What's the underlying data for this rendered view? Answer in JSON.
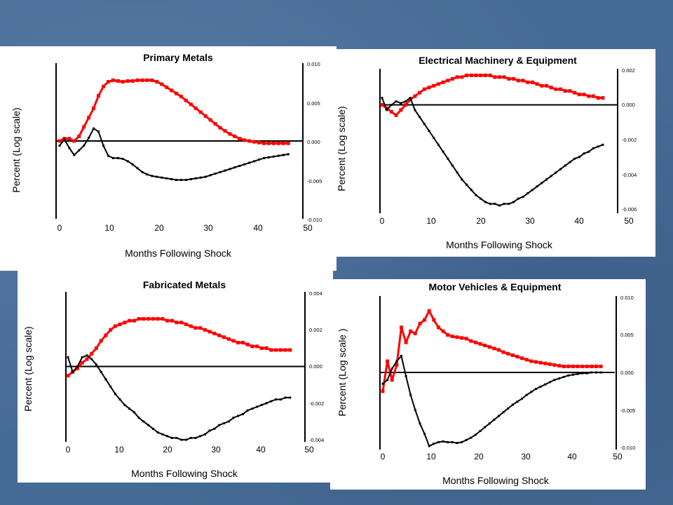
{
  "charts": [
    {
      "title": "Primary Metals",
      "xlabel": "Months Following Shock",
      "ylabel": "Percent (Log scale)",
      "xticks": [
        "0",
        "10",
        "20",
        "30",
        "40",
        "50"
      ],
      "yticks_right": [
        "0.010",
        "0.005",
        "0.000",
        "-0.005",
        "-0.010"
      ]
    },
    {
      "title": "Electrical Machinery & Equipment",
      "xlabel": "Months Following Shock",
      "ylabel": "Percent (Log scale)",
      "xticks": [
        "0",
        "10",
        "20",
        "30",
        "40",
        "50"
      ],
      "yticks_right": [
        "0.002",
        "0.000",
        "-0.002",
        "-0.004",
        "-0.006"
      ]
    },
    {
      "title": "Fabricated Metals",
      "xlabel": "Months Following Shock",
      "ylabel": "Percent (Log scale)",
      "xticks": [
        "0",
        "10",
        "20",
        "30",
        "40",
        "50"
      ],
      "yticks_right": [
        "0.004",
        "0.002",
        "0.000",
        "-0.002",
        "-0.004"
      ]
    },
    {
      "title": "Motor Vehicles & Equipment",
      "xlabel": "Months Following Shock",
      "ylabel": "Percent (Log scale )",
      "xticks": [
        "0",
        "10",
        "20",
        "30",
        "40",
        "50"
      ],
      "yticks_right": [
        "0.010",
        "0.005",
        "0.000",
        "-0.005",
        "-0.010"
      ]
    }
  ],
  "chart_data": [
    {
      "type": "line",
      "title": "Primary Metals",
      "xlabel": "Months Following Shock",
      "ylabel": "Percent (Log scale)",
      "xlim": [
        0,
        50
      ],
      "ylim": [
        -0.01,
        0.01
      ],
      "grid": false,
      "colors": {
        "red": "#ff0000",
        "black": "#000000",
        "zero": "#000000"
      },
      "series": [
        {
          "color": "red",
          "x": [
            0,
            1,
            2,
            3,
            4,
            5,
            6,
            7,
            8,
            9,
            10,
            11,
            12,
            13,
            14,
            15,
            16,
            17,
            18,
            19,
            20,
            21,
            22,
            23,
            24,
            25,
            26,
            27,
            28,
            29,
            30,
            31,
            32,
            33,
            34,
            35,
            36,
            37,
            38,
            39,
            40,
            41,
            42,
            43,
            44,
            45,
            46,
            47
          ],
          "values": [
            0.0,
            0.0003,
            0.0003,
            0.0,
            0.0006,
            0.0018,
            0.003,
            0.0042,
            0.0058,
            0.007,
            0.0076,
            0.0078,
            0.0077,
            0.0076,
            0.0077,
            0.0077,
            0.0078,
            0.0078,
            0.0078,
            0.0078,
            0.0076,
            0.0073,
            0.0069,
            0.0065,
            0.0061,
            0.0057,
            0.0052,
            0.0047,
            0.0042,
            0.0037,
            0.0032,
            0.0027,
            0.0022,
            0.0017,
            0.0013,
            0.0009,
            0.0006,
            0.0003,
            0.0001,
            0.0,
            -0.0001,
            -0.0002,
            -0.0003,
            -0.0003,
            -0.0003,
            -0.0003,
            -0.0003,
            -0.0003
          ]
        },
        {
          "color": "black",
          "x": [
            0,
            1,
            2,
            3,
            4,
            5,
            6,
            7,
            8,
            9,
            10,
            11,
            12,
            13,
            14,
            15,
            16,
            17,
            18,
            19,
            20,
            21,
            22,
            23,
            24,
            25,
            26,
            27,
            28,
            29,
            30,
            31,
            32,
            33,
            34,
            35,
            36,
            37,
            38,
            39,
            40,
            41,
            42,
            43,
            44,
            45,
            46,
            47
          ],
          "values": [
            -0.0006,
            0.0002,
            -0.0009,
            -0.0018,
            -0.0012,
            -0.0006,
            0.0004,
            0.0016,
            0.0012,
            -0.0006,
            -0.0019,
            -0.0022,
            -0.0022,
            -0.0023,
            -0.0026,
            -0.003,
            -0.0035,
            -0.004,
            -0.0043,
            -0.0045,
            -0.0046,
            -0.0047,
            -0.0048,
            -0.0049,
            -0.005,
            -0.005,
            -0.005,
            -0.0049,
            -0.0048,
            -0.0047,
            -0.0046,
            -0.0044,
            -0.0042,
            -0.004,
            -0.0038,
            -0.0036,
            -0.0034,
            -0.0032,
            -0.003,
            -0.0028,
            -0.0026,
            -0.0024,
            -0.0022,
            -0.0021,
            -0.002,
            -0.0019,
            -0.0018,
            -0.0017
          ]
        }
      ]
    },
    {
      "type": "line",
      "title": "Electrical Machinery & Equipment",
      "xlabel": "Months Following Shock",
      "ylabel": "Percent (Log scale)",
      "xlim": [
        0,
        50
      ],
      "ylim": [
        -0.006,
        0.002
      ],
      "grid": false,
      "colors": {
        "red": "#ff0000",
        "black": "#000000",
        "zero": "#000000"
      },
      "series": [
        {
          "color": "red",
          "x": [
            0,
            1,
            2,
            3,
            4,
            5,
            6,
            7,
            8,
            9,
            10,
            11,
            12,
            13,
            14,
            15,
            16,
            17,
            18,
            19,
            20,
            21,
            22,
            23,
            24,
            25,
            26,
            27,
            28,
            29,
            30,
            31,
            32,
            33,
            34,
            35,
            36,
            37,
            38,
            39,
            40,
            41,
            42,
            43,
            44,
            45,
            46,
            47
          ],
          "values": [
            0.0,
            -0.0002,
            -0.0004,
            -0.0006,
            -0.0003,
            0.0,
            0.0003,
            0.0005,
            0.0007,
            0.0009,
            0.001,
            0.0011,
            0.0012,
            0.0013,
            0.0014,
            0.0015,
            0.0016,
            0.0016,
            0.0017,
            0.0017,
            0.0017,
            0.0017,
            0.0017,
            0.0017,
            0.0016,
            0.0016,
            0.0016,
            0.0015,
            0.0015,
            0.0014,
            0.0014,
            0.0013,
            0.0013,
            0.0012,
            0.0011,
            0.0011,
            0.001,
            0.0009,
            0.0009,
            0.0008,
            0.0008,
            0.0007,
            0.0006,
            0.0006,
            0.0005,
            0.0005,
            0.0004,
            0.0004
          ]
        },
        {
          "color": "black",
          "x": [
            0,
            1,
            2,
            3,
            4,
            5,
            6,
            7,
            8,
            9,
            10,
            11,
            12,
            13,
            14,
            15,
            16,
            17,
            18,
            19,
            20,
            21,
            22,
            23,
            24,
            25,
            26,
            27,
            28,
            29,
            30,
            31,
            32,
            33,
            34,
            35,
            36,
            37,
            38,
            39,
            40,
            41,
            42,
            43,
            44,
            45,
            46,
            47
          ],
          "values": [
            0.0004,
            -0.0003,
            0.0,
            0.0002,
            0.0001,
            0.0002,
            0.0004,
            -0.0003,
            -0.0007,
            -0.0011,
            -0.0015,
            -0.0019,
            -0.0023,
            -0.0027,
            -0.0031,
            -0.0035,
            -0.0039,
            -0.0043,
            -0.0046,
            -0.0049,
            -0.0052,
            -0.0054,
            -0.0056,
            -0.0057,
            -0.0057,
            -0.0058,
            -0.0057,
            -0.0057,
            -0.0056,
            -0.0054,
            -0.0053,
            -0.0051,
            -0.0049,
            -0.0047,
            -0.0045,
            -0.0043,
            -0.0041,
            -0.0039,
            -0.0037,
            -0.0035,
            -0.0033,
            -0.0031,
            -0.003,
            -0.0028,
            -0.0027,
            -0.0025,
            -0.0024,
            -0.0023
          ]
        }
      ]
    },
    {
      "type": "line",
      "title": "Fabricated Metals",
      "xlabel": "Months Following Shock",
      "ylabel": "Percent (Log scale)",
      "xlim": [
        0,
        50
      ],
      "ylim": [
        -0.004,
        0.004
      ],
      "grid": false,
      "colors": {
        "red": "#ff0000",
        "black": "#000000",
        "zero": "#000000"
      },
      "series": [
        {
          "color": "red",
          "x": [
            0,
            1,
            2,
            3,
            4,
            5,
            6,
            7,
            8,
            9,
            10,
            11,
            12,
            13,
            14,
            15,
            16,
            17,
            18,
            19,
            20,
            21,
            22,
            23,
            24,
            25,
            26,
            27,
            28,
            29,
            30,
            31,
            32,
            33,
            34,
            35,
            36,
            37,
            38,
            39,
            40,
            41,
            42,
            43,
            44,
            45,
            46,
            47
          ],
          "values": [
            -0.0005,
            -0.0003,
            -0.0001,
            0.0002,
            0.0004,
            0.0007,
            0.001,
            0.0014,
            0.0017,
            0.002,
            0.0022,
            0.0023,
            0.0024,
            0.0025,
            0.0025,
            0.0026,
            0.0026,
            0.0026,
            0.0026,
            0.0026,
            0.0026,
            0.0025,
            0.0025,
            0.0024,
            0.0024,
            0.0023,
            0.0022,
            0.0021,
            0.0021,
            0.002,
            0.0019,
            0.0018,
            0.0017,
            0.0016,
            0.0015,
            0.0014,
            0.0013,
            0.0013,
            0.0012,
            0.0011,
            0.0011,
            0.001,
            0.001,
            0.0009,
            0.0009,
            0.0009,
            0.0009,
            0.0009
          ]
        },
        {
          "color": "black",
          "x": [
            0,
            1,
            2,
            3,
            4,
            5,
            6,
            7,
            8,
            9,
            10,
            11,
            12,
            13,
            14,
            15,
            16,
            17,
            18,
            19,
            20,
            21,
            22,
            23,
            24,
            25,
            26,
            27,
            28,
            29,
            30,
            31,
            32,
            33,
            34,
            35,
            36,
            37,
            38,
            39,
            40,
            41,
            42,
            43,
            44,
            45,
            46,
            47
          ],
          "values": [
            0.0005,
            -0.0003,
            0.0,
            0.0005,
            0.0006,
            0.0004,
            0.0001,
            -0.0003,
            -0.0007,
            -0.0011,
            -0.0015,
            -0.0018,
            -0.0021,
            -0.0023,
            -0.0025,
            -0.0028,
            -0.003,
            -0.0032,
            -0.0034,
            -0.0036,
            -0.0037,
            -0.0038,
            -0.0039,
            -0.0039,
            -0.004,
            -0.004,
            -0.0039,
            -0.0039,
            -0.0038,
            -0.0037,
            -0.0035,
            -0.0034,
            -0.0032,
            -0.0031,
            -0.003,
            -0.0028,
            -0.0027,
            -0.0026,
            -0.0024,
            -0.0023,
            -0.0022,
            -0.0021,
            -0.002,
            -0.0019,
            -0.0018,
            -0.0018,
            -0.0017,
            -0.0017
          ]
        }
      ]
    },
    {
      "type": "line",
      "title": "Motor Vehicles & Equipment",
      "xlabel": "Months Following Shock",
      "ylabel": "Percent (Log scale )",
      "xlim": [
        0,
        50
      ],
      "ylim": [
        -0.01,
        0.01
      ],
      "grid": false,
      "colors": {
        "red": "#ff0000",
        "black": "#000000",
        "zero": "#000000"
      },
      "series": [
        {
          "color": "red",
          "x": [
            0,
            1,
            2,
            3,
            4,
            5,
            6,
            7,
            8,
            9,
            10,
            11,
            12,
            13,
            14,
            15,
            16,
            17,
            18,
            19,
            20,
            21,
            22,
            23,
            24,
            25,
            26,
            27,
            28,
            29,
            30,
            31,
            32,
            33,
            34,
            35,
            36,
            37,
            38,
            39,
            40,
            41,
            42,
            43,
            44,
            45,
            46,
            47
          ],
          "values": [
            -0.0025,
            0.0015,
            -0.001,
            0.001,
            0.006,
            0.004,
            0.0055,
            0.0052,
            0.0065,
            0.007,
            0.0082,
            0.007,
            0.006,
            0.0055,
            0.005,
            0.0048,
            0.0047,
            0.0046,
            0.0045,
            0.0042,
            0.004,
            0.0038,
            0.0036,
            0.0034,
            0.0032,
            0.003,
            0.0027,
            0.0025,
            0.0023,
            0.0021,
            0.0019,
            0.0017,
            0.0015,
            0.0014,
            0.0013,
            0.0012,
            0.0011,
            0.001,
            0.0009,
            0.0008,
            0.0008,
            0.0008,
            0.0008,
            0.0008,
            0.0008,
            0.0008,
            0.0008,
            0.0008
          ]
        },
        {
          "color": "black",
          "x": [
            0,
            1,
            2,
            3,
            4,
            5,
            6,
            7,
            8,
            9,
            10,
            11,
            12,
            13,
            14,
            15,
            16,
            17,
            18,
            19,
            20,
            21,
            22,
            23,
            24,
            25,
            26,
            27,
            28,
            29,
            30,
            31,
            32,
            33,
            34,
            35,
            36,
            37,
            38,
            39,
            40,
            41,
            42,
            43,
            44,
            45,
            46,
            47
          ],
          "values": [
            -0.0015,
            -0.001,
            0.0005,
            0.0015,
            0.0022,
            -0.0005,
            -0.003,
            -0.005,
            -0.0068,
            -0.0082,
            -0.0098,
            -0.0095,
            -0.0093,
            -0.0092,
            -0.0093,
            -0.0093,
            -0.0094,
            -0.0093,
            -0.009,
            -0.0087,
            -0.0083,
            -0.0078,
            -0.0073,
            -0.0068,
            -0.0063,
            -0.0058,
            -0.0053,
            -0.0048,
            -0.0043,
            -0.0039,
            -0.0035,
            -0.003,
            -0.0026,
            -0.0022,
            -0.0019,
            -0.0016,
            -0.0013,
            -0.001,
            -0.0008,
            -0.0006,
            -0.0004,
            -0.0003,
            -0.0002,
            -0.0001,
            -0.0001,
            0.0,
            0.0,
            0.0
          ]
        }
      ]
    }
  ]
}
